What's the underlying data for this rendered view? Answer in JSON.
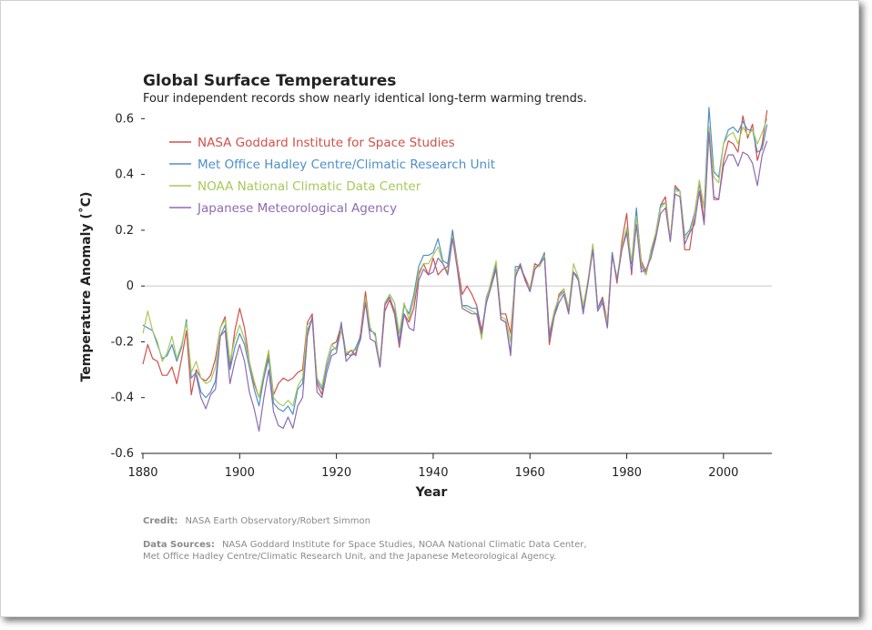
{
  "chart_data": {
    "type": "line",
    "title": "Global Surface Temperatures",
    "subtitle": "Four independent records show nearly identical long-term warming trends.",
    "xlabel": "Year",
    "ylabel": "Temperature Anomaly (˚C)",
    "xlim": [
      1880,
      2010
    ],
    "ylim": [
      -0.6,
      0.65
    ],
    "xticks": [
      1880,
      1900,
      1920,
      1940,
      1960,
      1980,
      2000
    ],
    "yticks": [
      -0.6,
      -0.4,
      -0.2,
      0,
      0.2,
      0.4,
      0.6
    ],
    "ytick_labels": [
      "-0.6",
      "-0.4",
      "-0.2",
      "0",
      "0.2",
      "0.4",
      "0.6"
    ],
    "grid": "zero line only",
    "legend_position": "top-left",
    "x_start": 1880,
    "series": [
      {
        "name": "NASA Goddard Institute for Space Studies",
        "color": "#d0504a",
        "values": [
          -0.28,
          -0.21,
          -0.26,
          -0.27,
          -0.32,
          -0.32,
          -0.29,
          -0.35,
          -0.26,
          -0.16,
          -0.39,
          -0.3,
          -0.33,
          -0.34,
          -0.32,
          -0.26,
          -0.15,
          -0.11,
          -0.29,
          -0.16,
          -0.08,
          -0.15,
          -0.27,
          -0.35,
          -0.4,
          -0.33,
          -0.24,
          -0.39,
          -0.35,
          -0.33,
          -0.34,
          -0.33,
          -0.31,
          -0.3,
          -0.13,
          -0.1,
          -0.35,
          -0.39,
          -0.27,
          -0.21,
          -0.2,
          -0.14,
          -0.25,
          -0.23,
          -0.25,
          -0.17,
          -0.02,
          -0.16,
          -0.17,
          -0.29,
          -0.09,
          -0.05,
          -0.1,
          -0.22,
          -0.1,
          -0.13,
          -0.08,
          0.04,
          0.08,
          0.04,
          0.1,
          0.04,
          0.06,
          0.07,
          0.2,
          0.08,
          -0.03,
          0.0,
          -0.03,
          -0.07,
          -0.16,
          -0.06,
          0.0,
          0.08,
          -0.1,
          -0.1,
          -0.17,
          0.04,
          0.07,
          0.03,
          -0.01,
          0.08,
          0.07,
          0.11,
          -0.21,
          -0.11,
          -0.03,
          -0.01,
          -0.09,
          0.05,
          0.03,
          -0.08,
          0.02,
          0.14,
          -0.08,
          -0.04,
          -0.13,
          0.12,
          0.01,
          0.16,
          0.26,
          0.04,
          0.26,
          0.09,
          0.05,
          0.12,
          0.18,
          0.29,
          0.32,
          0.16,
          0.36,
          0.34,
          0.13,
          0.13,
          0.25,
          0.37,
          0.23,
          0.57,
          0.32,
          0.31,
          0.45,
          0.52,
          0.51,
          0.48,
          0.61,
          0.53,
          0.58,
          0.45,
          0.51,
          0.63
        ],
        "legend_symbol": "line"
      },
      {
        "name": "Met Office Hadley Centre/Climatic Research Unit",
        "color": "#4f8fc8",
        "values": [
          -0.14,
          -0.15,
          -0.16,
          -0.21,
          -0.26,
          -0.25,
          -0.21,
          -0.27,
          -0.22,
          -0.12,
          -0.33,
          -0.31,
          -0.38,
          -0.4,
          -0.38,
          -0.34,
          -0.18,
          -0.14,
          -0.3,
          -0.22,
          -0.17,
          -0.21,
          -0.29,
          -0.37,
          -0.43,
          -0.33,
          -0.26,
          -0.42,
          -0.44,
          -0.45,
          -0.43,
          -0.46,
          -0.37,
          -0.35,
          -0.16,
          -0.12,
          -0.34,
          -0.37,
          -0.29,
          -0.23,
          -0.22,
          -0.14,
          -0.24,
          -0.25,
          -0.22,
          -0.18,
          -0.05,
          -0.16,
          -0.17,
          -0.29,
          -0.07,
          -0.03,
          -0.06,
          -0.2,
          -0.07,
          -0.1,
          -0.03,
          0.07,
          0.11,
          0.11,
          0.12,
          0.17,
          0.09,
          0.08,
          0.2,
          0.06,
          -0.07,
          -0.07,
          -0.08,
          -0.08,
          -0.18,
          -0.04,
          0.01,
          0.07,
          -0.12,
          -0.13,
          -0.24,
          0.07,
          0.07,
          0.02,
          -0.02,
          0.06,
          0.08,
          0.12,
          -0.19,
          -0.11,
          -0.04,
          -0.02,
          -0.08,
          0.05,
          0.03,
          -0.08,
          0.01,
          0.15,
          -0.08,
          -0.05,
          -0.15,
          0.12,
          0.02,
          0.13,
          0.2,
          0.08,
          0.28,
          0.07,
          0.04,
          0.12,
          0.19,
          0.29,
          0.3,
          0.16,
          0.35,
          0.34,
          0.18,
          0.2,
          0.26,
          0.37,
          0.28,
          0.64,
          0.41,
          0.39,
          0.51,
          0.56,
          0.57,
          0.55,
          0.59,
          0.56,
          0.56,
          0.48,
          0.49,
          0.58
        ],
        "legend_symbol": "line"
      },
      {
        "name": "NOAA National Climatic Data Center",
        "color": "#a6c95a",
        "values": [
          -0.17,
          -0.09,
          -0.16,
          -0.2,
          -0.27,
          -0.24,
          -0.18,
          -0.26,
          -0.21,
          -0.13,
          -0.31,
          -0.27,
          -0.33,
          -0.35,
          -0.34,
          -0.29,
          -0.15,
          -0.12,
          -0.27,
          -0.19,
          -0.14,
          -0.19,
          -0.27,
          -0.34,
          -0.4,
          -0.31,
          -0.23,
          -0.4,
          -0.42,
          -0.43,
          -0.41,
          -0.43,
          -0.36,
          -0.33,
          -0.14,
          -0.12,
          -0.33,
          -0.36,
          -0.27,
          -0.21,
          -0.23,
          -0.16,
          -0.24,
          -0.23,
          -0.23,
          -0.19,
          -0.04,
          -0.15,
          -0.18,
          -0.28,
          -0.06,
          -0.03,
          -0.06,
          -0.17,
          -0.06,
          -0.12,
          -0.05,
          0.05,
          0.08,
          0.08,
          0.11,
          0.14,
          0.08,
          0.05,
          0.18,
          0.07,
          -0.07,
          -0.08,
          -0.09,
          -0.1,
          -0.19,
          -0.05,
          0.02,
          0.09,
          -0.11,
          -0.12,
          -0.2,
          0.05,
          0.08,
          0.02,
          -0.01,
          0.07,
          0.07,
          0.11,
          -0.17,
          -0.09,
          -0.04,
          -0.01,
          -0.08,
          0.08,
          0.03,
          -0.07,
          0.02,
          0.15,
          -0.09,
          -0.06,
          -0.13,
          0.11,
          0.03,
          0.14,
          0.21,
          0.09,
          0.25,
          0.08,
          0.04,
          0.13,
          0.19,
          0.28,
          0.3,
          0.17,
          0.34,
          0.34,
          0.17,
          0.19,
          0.25,
          0.38,
          0.28,
          0.57,
          0.39,
          0.37,
          0.51,
          0.54,
          0.55,
          0.51,
          0.57,
          0.54,
          0.56,
          0.51,
          0.55,
          0.6
        ],
        "legend_symbol": "line"
      },
      {
        "name": "Japanese Meteorological Agency",
        "color": "#8e6bb0",
        "values": [
          null,
          null,
          null,
          null,
          null,
          null,
          null,
          null,
          null,
          null,
          null,
          -0.32,
          -0.4,
          -0.44,
          -0.39,
          -0.37,
          -0.18,
          -0.16,
          -0.35,
          -0.27,
          -0.21,
          -0.27,
          -0.38,
          -0.44,
          -0.52,
          -0.4,
          -0.3,
          -0.45,
          -0.5,
          -0.51,
          -0.47,
          -0.51,
          -0.43,
          -0.4,
          -0.18,
          -0.11,
          -0.38,
          -0.4,
          -0.31,
          -0.25,
          -0.24,
          -0.13,
          -0.27,
          -0.25,
          -0.24,
          -0.19,
          -0.06,
          -0.19,
          -0.2,
          -0.29,
          -0.07,
          -0.04,
          -0.09,
          -0.21,
          -0.1,
          -0.15,
          -0.16,
          0.02,
          0.06,
          0.04,
          0.05,
          0.1,
          0.08,
          0.04,
          0.17,
          0.06,
          -0.08,
          -0.09,
          -0.1,
          -0.1,
          -0.17,
          -0.06,
          0.0,
          0.06,
          -0.12,
          -0.13,
          -0.25,
          0.03,
          0.08,
          0.02,
          -0.02,
          0.06,
          0.08,
          0.1,
          -0.18,
          -0.11,
          -0.06,
          -0.03,
          -0.1,
          0.05,
          0.02,
          -0.1,
          0.01,
          0.13,
          -0.09,
          -0.06,
          -0.15,
          0.11,
          0.02,
          0.13,
          0.19,
          0.05,
          0.22,
          0.05,
          0.06,
          0.1,
          0.17,
          0.26,
          0.28,
          0.16,
          0.33,
          0.32,
          0.15,
          0.19,
          0.22,
          0.34,
          0.22,
          0.55,
          0.31,
          0.31,
          0.43,
          0.47,
          0.47,
          0.43,
          0.48,
          0.47,
          0.44,
          0.36,
          0.47,
          0.52
        ],
        "legend_symbol": "line"
      }
    ]
  },
  "credit": {
    "label": "Credit:",
    "text": "NASA Earth Observatory/Robert Simmon"
  },
  "data_sources": {
    "label": "Data Sources:",
    "line1": "NASA Goddard Institute for Space Studies, NOAA National Climatic Data Center,",
    "line2": "Met Office Hadley Centre/Climatic Research Unit, and the Japanese Meteorological Agency."
  }
}
